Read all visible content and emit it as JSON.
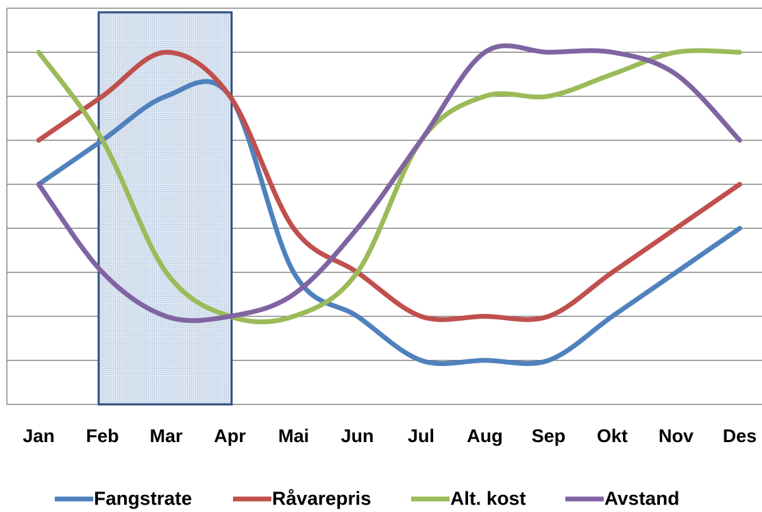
{
  "chart_data": {
    "type": "line",
    "categories": [
      "Jan",
      "Feb",
      "Mar",
      "Apr",
      "Mai",
      "Jun",
      "Jul",
      "Aug",
      "Sep",
      "Okt",
      "Nov",
      "Des"
    ],
    "series": [
      {
        "name": "Fangstrate",
        "color": "#4f81bd",
        "values": [
          5,
          6,
          7,
          7,
          3,
          2,
          1,
          1,
          1,
          2,
          3,
          4
        ]
      },
      {
        "name": "Råvarepris",
        "color": "#c0504d",
        "values": [
          6,
          7,
          8,
          7,
          4,
          3,
          2,
          2,
          2,
          3,
          4,
          5
        ]
      },
      {
        "name": "Alt. kost",
        "color": "#9bbb59",
        "values": [
          8,
          6,
          3,
          2,
          2,
          3,
          6,
          7,
          7,
          7.5,
          8,
          8
        ]
      },
      {
        "name": "Avstand",
        "color": "#8064a2",
        "values": [
          5,
          3,
          2,
          2,
          2.5,
          4,
          6,
          8,
          8,
          8,
          7.5,
          6
        ]
      }
    ],
    "ylim": [
      0,
      9
    ],
    "yticks": [
      0,
      1,
      2,
      3,
      4,
      5,
      6,
      7,
      8,
      9
    ],
    "grid": true,
    "smooth": true
  }
}
